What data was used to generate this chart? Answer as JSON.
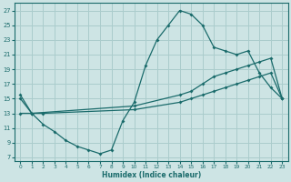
{
  "bg_color": "#cde4e4",
  "grid_color": "#aacccc",
  "line_color": "#1a6b6b",
  "xlabel": "Humidex (Indice chaleur)",
  "xlim": [
    -0.5,
    23.5
  ],
  "ylim": [
    6.5,
    28.0
  ],
  "yticks": [
    7,
    9,
    11,
    13,
    15,
    17,
    19,
    21,
    23,
    25,
    27
  ],
  "xticks": [
    0,
    1,
    2,
    3,
    4,
    5,
    6,
    7,
    8,
    9,
    10,
    11,
    12,
    13,
    14,
    15,
    16,
    17,
    18,
    19,
    20,
    21,
    22,
    23
  ],
  "line1_x": [
    0,
    1,
    2,
    3,
    4,
    5,
    6,
    7,
    8,
    9,
    10,
    11,
    12,
    13,
    14,
    15,
    16,
    17,
    18,
    19,
    20,
    21,
    22,
    23
  ],
  "line1_y": [
    15.5,
    13.0,
    11.5,
    10.5,
    9.3,
    8.5,
    8.0,
    7.5,
    8.0,
    12.0,
    14.5,
    19.5,
    23.0,
    25.0,
    27.0,
    26.5,
    25.0,
    22.0,
    21.5,
    21.0,
    21.5,
    18.5,
    16.5,
    15.0
  ],
  "line2_x": [
    0,
    1,
    2,
    10,
    14,
    15,
    16,
    17,
    18,
    19,
    20,
    21,
    22,
    23
  ],
  "line2_y": [
    13.0,
    13.0,
    13.0,
    13.5,
    14.5,
    15.0,
    15.5,
    16.0,
    16.5,
    17.0,
    17.5,
    18.0,
    18.5,
    15.0
  ],
  "line3_x": [
    0,
    1,
    10,
    14,
    15,
    16,
    17,
    18,
    19,
    20,
    21,
    22,
    23
  ],
  "line3_y": [
    15.0,
    13.0,
    14.0,
    15.5,
    16.0,
    17.0,
    18.0,
    18.5,
    19.0,
    19.5,
    20.0,
    20.5,
    15.0
  ]
}
